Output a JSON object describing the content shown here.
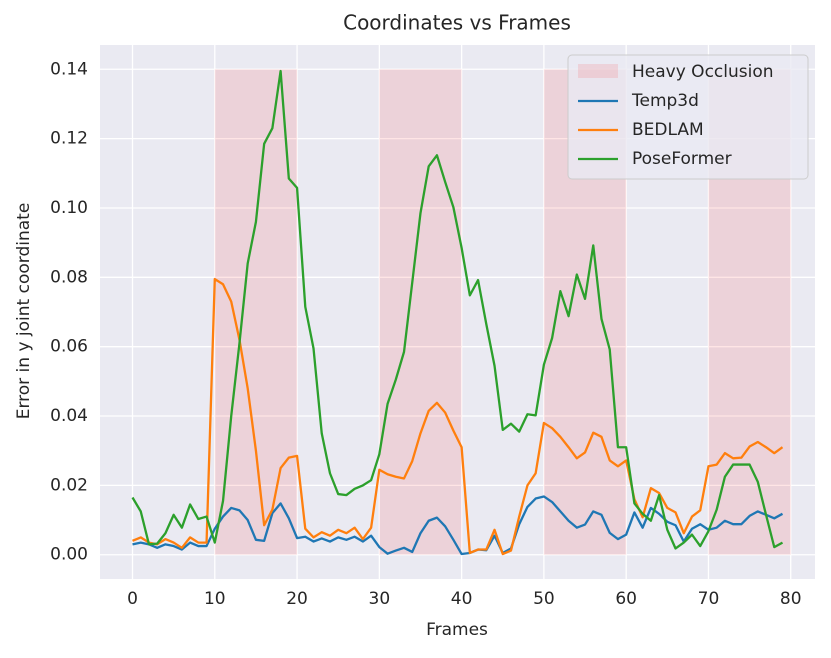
{
  "chart_data": {
    "type": "line",
    "title": "Coordinates vs Frames",
    "xlabel": "Frames",
    "ylabel": "Error in y joint coordinate",
    "x": [
      0,
      1,
      2,
      3,
      4,
      5,
      6,
      7,
      8,
      9,
      10,
      11,
      12,
      13,
      14,
      15,
      16,
      17,
      18,
      19,
      20,
      21,
      22,
      23,
      24,
      25,
      26,
      27,
      28,
      29,
      30,
      31,
      32,
      33,
      34,
      35,
      36,
      37,
      38,
      39,
      40,
      41,
      42,
      43,
      44,
      45,
      46,
      47,
      48,
      49,
      50,
      51,
      52,
      53,
      54,
      55,
      56,
      57,
      58,
      59,
      60,
      61,
      62,
      63,
      64,
      65,
      66,
      67,
      68,
      69,
      70,
      71,
      72,
      73,
      74,
      75,
      76,
      77,
      78,
      79
    ],
    "shaded_regions": {
      "name": "Heavy Occlusion",
      "color": "rgba(255,0,0,0.1)",
      "y_range": [
        0,
        0.14
      ],
      "ranges": [
        [
          10,
          20
        ],
        [
          30,
          40
        ],
        [
          50,
          60
        ],
        [
          70,
          80
        ]
      ]
    },
    "series": [
      {
        "name": "Temp3d",
        "color": "#1f77b4",
        "values": [
          0.003,
          0.0035,
          0.003,
          0.002,
          0.003,
          0.0025,
          0.0015,
          0.0035,
          0.0025,
          0.0025,
          0.0075,
          0.011,
          0.0135,
          0.0128,
          0.01,
          0.0043,
          0.004,
          0.012,
          0.0148,
          0.0105,
          0.0048,
          0.0052,
          0.0038,
          0.0047,
          0.0038,
          0.005,
          0.0043,
          0.0052,
          0.0038,
          0.0055,
          0.0022,
          0.0003,
          0.0012,
          0.002,
          0.0008,
          0.0062,
          0.0098,
          0.0107,
          0.0082,
          0.0043,
          0.0002,
          0.0005,
          0.0015,
          0.0013,
          0.0055,
          0.0005,
          0.0018,
          0.0088,
          0.0138,
          0.0162,
          0.0168,
          0.0152,
          0.0125,
          0.0098,
          0.0078,
          0.0087,
          0.0125,
          0.0115,
          0.0063,
          0.0045,
          0.0058,
          0.0122,
          0.0078,
          0.0135,
          0.0118,
          0.0095,
          0.0085,
          0.0038,
          0.0075,
          0.0088,
          0.0072,
          0.0078,
          0.0098,
          0.0088,
          0.0088,
          0.0112,
          0.0125,
          0.0115,
          0.0105,
          0.0118
        ]
      },
      {
        "name": "BEDLAM",
        "color": "#ff7f0e",
        "values": [
          0.004,
          0.005,
          0.0035,
          0.003,
          0.0045,
          0.0035,
          0.002,
          0.005,
          0.0035,
          0.0035,
          0.0795,
          0.078,
          0.073,
          0.062,
          0.048,
          0.03,
          0.0085,
          0.013,
          0.025,
          0.028,
          0.0285,
          0.0075,
          0.005,
          0.0065,
          0.0055,
          0.0072,
          0.0062,
          0.0078,
          0.0045,
          0.0078,
          0.0245,
          0.0232,
          0.0225,
          0.022,
          0.027,
          0.035,
          0.0415,
          0.0438,
          0.041,
          0.0358,
          0.031,
          0.0005,
          0.0015,
          0.0015,
          0.0072,
          0.0002,
          0.0012,
          0.011,
          0.02,
          0.0235,
          0.038,
          0.0365,
          0.034,
          0.031,
          0.0278,
          0.0295,
          0.0352,
          0.034,
          0.0272,
          0.0255,
          0.0272,
          0.016,
          0.0108,
          0.0192,
          0.0178,
          0.0135,
          0.0122,
          0.0062,
          0.011,
          0.0128,
          0.0255,
          0.026,
          0.0293,
          0.0278,
          0.028,
          0.0312,
          0.0325,
          0.031,
          0.0293,
          0.031
        ]
      },
      {
        "name": "PoseFormer",
        "color": "#2ca02c",
        "values": [
          0.0165,
          0.0125,
          0.003,
          0.0032,
          0.0062,
          0.0115,
          0.0078,
          0.0145,
          0.0103,
          0.011,
          0.0035,
          0.0155,
          0.04,
          0.061,
          0.084,
          0.096,
          0.1185,
          0.123,
          0.1395,
          0.1085,
          0.1058,
          0.0715,
          0.0595,
          0.035,
          0.0235,
          0.0175,
          0.0172,
          0.019,
          0.02,
          0.0215,
          0.029,
          0.0435,
          0.0505,
          0.0585,
          0.0785,
          0.0985,
          0.112,
          0.1152,
          0.1075,
          0.1002,
          0.0885,
          0.0748,
          0.0792,
          0.0665,
          0.0545,
          0.036,
          0.0378,
          0.0355,
          0.0405,
          0.0402,
          0.0548,
          0.0625,
          0.076,
          0.0688,
          0.0808,
          0.0738,
          0.0892,
          0.068,
          0.0592,
          0.031,
          0.031,
          0.0148,
          0.0118,
          0.0098,
          0.0172,
          0.0072,
          0.0018,
          0.0035,
          0.0058,
          0.0025,
          0.0068,
          0.013,
          0.0225,
          0.026,
          0.026,
          0.026,
          0.021,
          0.0115,
          0.0022,
          0.0035
        ]
      }
    ],
    "xlim": [
      -3.95,
      82.95
    ],
    "ylim": [
      -0.007,
      0.147
    ],
    "xticks": [
      0,
      10,
      20,
      30,
      40,
      50,
      60,
      70,
      80
    ],
    "yticks": [
      {
        "value": 0,
        "label": "0.00"
      },
      0.02,
      0.04,
      0.06,
      0.08,
      {
        "value": 0.1,
        "label": "0.10"
      },
      0.12,
      0.14
    ],
    "grid": true,
    "background": "#eaeaf2",
    "legend": "upper right"
  }
}
